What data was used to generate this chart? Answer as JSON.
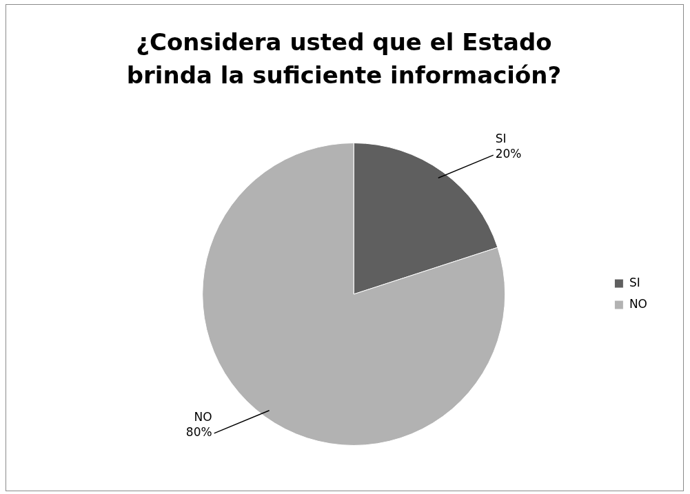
{
  "chart_data": {
    "type": "pie",
    "title": "¿Considera usted que el Estado brinda la suficiente información?",
    "categories": [
      "SI",
      "NO"
    ],
    "values": [
      20,
      80
    ],
    "value_labels": [
      "20%",
      "80%"
    ],
    "colors": [
      "#5f5f5f",
      "#b2b2b2"
    ],
    "legend": "right"
  }
}
